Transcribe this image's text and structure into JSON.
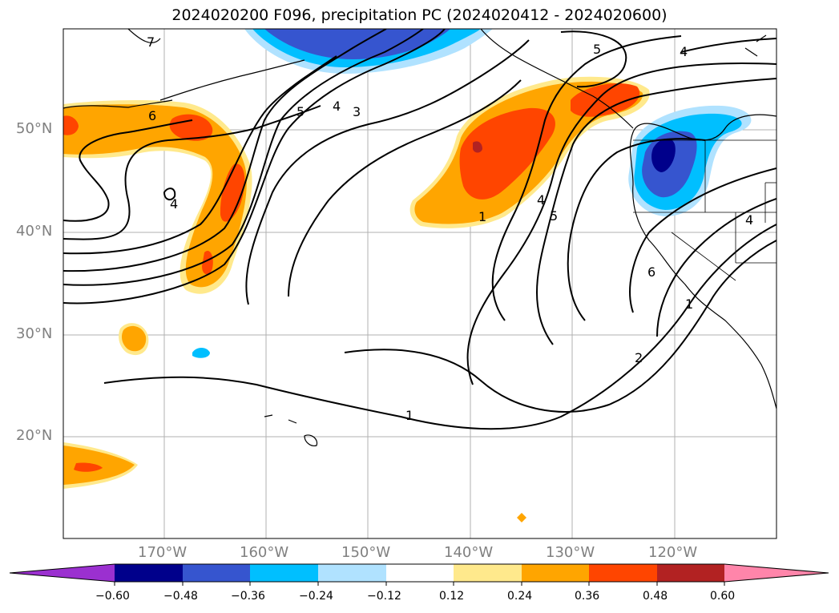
{
  "title": "2024020200 F096, precipitation PC (2024020412 - 2024020600)",
  "lat_labels": [
    "50°N",
    "40°N",
    "30°N",
    "20°N"
  ],
  "lon_labels": [
    "170°W",
    "160°W",
    "150°W",
    "140°W",
    "130°W",
    "120°W"
  ],
  "colorbar": {
    "ticks": [
      "−0.60",
      "−0.48",
      "−0.36",
      "−0.24",
      "−0.12",
      "0.12",
      "0.24",
      "0.36",
      "0.48",
      "0.60"
    ],
    "colors": [
      "#9b30d0",
      "#00008b",
      "#3655cf",
      "#00bfff",
      "#b0e2ff",
      "#ffffff",
      "#ffe98c",
      "#ffa500",
      "#ff4500",
      "#b22222",
      "#ff85aa"
    ]
  },
  "contour_labels": [
    "7",
    "6",
    "5",
    "4",
    "3",
    "1",
    "4",
    "5",
    "1",
    "2",
    "6",
    "5",
    "4",
    "4",
    "1",
    "4"
  ]
}
